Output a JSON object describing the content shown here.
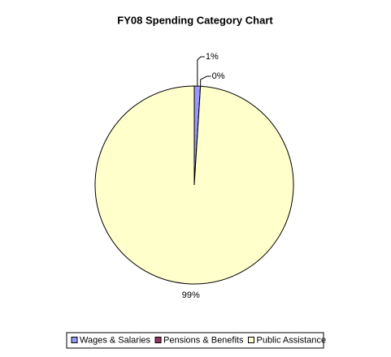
{
  "chart_data": {
    "type": "pie",
    "title": "FY08 Spending Category Chart",
    "categories": [
      "Wages & Salaries",
      "Pensions & Benefits",
      "Public Assistance"
    ],
    "values": [
      1,
      0,
      99
    ],
    "value_labels": [
      "1%",
      "0%",
      "99%"
    ],
    "colors": [
      "#9999ff",
      "#993366",
      "#ffffcc"
    ],
    "legend": "bottom"
  }
}
